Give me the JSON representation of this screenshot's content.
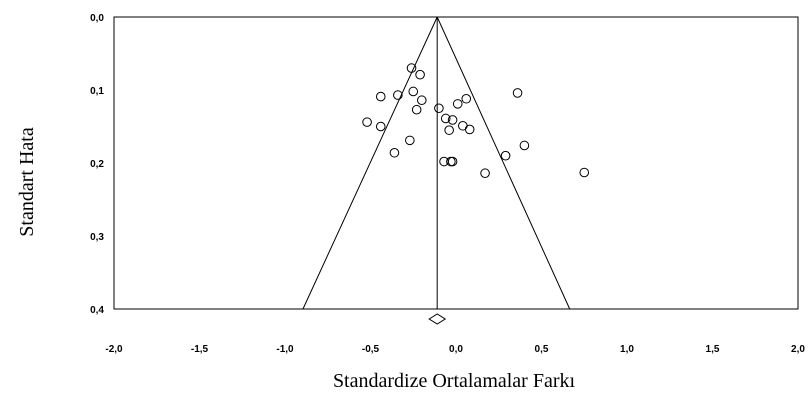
{
  "chart_data": {
    "type": "scatter",
    "subtype": "funnel-plot",
    "title": "",
    "xlabel": "Standardize Ortalamalar Farkı",
    "ylabel": "Standart Hata",
    "xlim": [
      -2.0,
      2.0
    ],
    "ylim": [
      0.0,
      0.4
    ],
    "y_inverted": true,
    "grid": false,
    "x_ticks": [
      "-2,0",
      "-1,5",
      "-1,0",
      "-0,5",
      "0,0",
      "0,5",
      "1,0",
      "1,5",
      "2,0"
    ],
    "y_ticks": [
      "0,0",
      "0,1",
      "0,2",
      "0,3",
      "0,4"
    ],
    "pooled_effect": -0.11,
    "funnel_bottom": {
      "se": 0.4,
      "left": -0.895,
      "right": 0.665
    },
    "points": [
      {
        "x": -0.26,
        "y": 0.07
      },
      {
        "x": -0.21,
        "y": 0.079
      },
      {
        "x": -0.44,
        "y": 0.109
      },
      {
        "x": -0.34,
        "y": 0.107
      },
      {
        "x": -0.25,
        "y": 0.102
      },
      {
        "x": -0.2,
        "y": 0.114
      },
      {
        "x": -0.23,
        "y": 0.127
      },
      {
        "x": -0.1,
        "y": 0.125
      },
      {
        "x": 0.01,
        "y": 0.119
      },
      {
        "x": 0.06,
        "y": 0.112
      },
      {
        "x": 0.36,
        "y": 0.104
      },
      {
        "x": -0.52,
        "y": 0.144
      },
      {
        "x": -0.44,
        "y": 0.15
      },
      {
        "x": -0.06,
        "y": 0.139
      },
      {
        "x": -0.02,
        "y": 0.141
      },
      {
        "x": 0.04,
        "y": 0.149
      },
      {
        "x": -0.04,
        "y": 0.155
      },
      {
        "x": 0.08,
        "y": 0.154
      },
      {
        "x": -0.27,
        "y": 0.169
      },
      {
        "x": -0.36,
        "y": 0.186
      },
      {
        "x": 0.4,
        "y": 0.176
      },
      {
        "x": -0.07,
        "y": 0.198
      },
      {
        "x": -0.03,
        "y": 0.198
      },
      {
        "x": -0.02,
        "y": 0.198
      },
      {
        "x": 0.29,
        "y": 0.19
      },
      {
        "x": 0.17,
        "y": 0.214
      },
      {
        "x": 0.75,
        "y": 0.213
      }
    ]
  }
}
